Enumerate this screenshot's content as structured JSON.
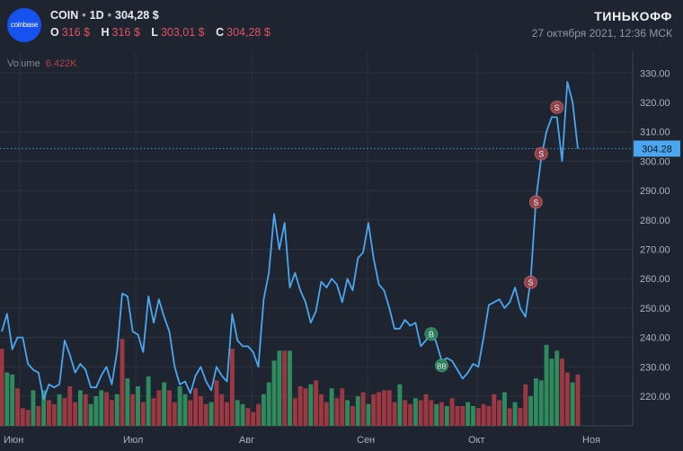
{
  "header": {
    "logo_text": "coinbase",
    "symbol": "COIN",
    "interval": "1D",
    "price": "304,28 $",
    "ohlc": [
      {
        "key": "O",
        "value": "316 $"
      },
      {
        "key": "H",
        "value": "316 $"
      },
      {
        "key": "L",
        "value": "303,01 $"
      },
      {
        "key": "C",
        "value": "304,28 $"
      }
    ],
    "brand": "ТИНЬКОФФ",
    "timestamp": "27 октября 2021, 12:36 МСК"
  },
  "volume": {
    "label": "Volume",
    "value": "6.422K"
  },
  "colors": {
    "background": "#1e2530",
    "line": "#4ba6f0",
    "volume_up": "#2f8a5e",
    "volume_down": "#9b3842",
    "marker_sell": "#a8484e",
    "marker_buy": "#2e8a60",
    "price_badge": "#4ba6f0",
    "grid": "#2b3440"
  },
  "chart_data": {
    "type": "line",
    "x_labels": [
      "Июн",
      "Июл",
      "Авг",
      "Сен",
      "Окт",
      "Ноя"
    ],
    "y_ticks": [
      220,
      230,
      240,
      250,
      260,
      270,
      280,
      290,
      300,
      310,
      320,
      330
    ],
    "y_tick_labels": [
      "220.00",
      "230.00",
      "240.00",
      "250.00",
      "260.00",
      "270.00",
      "280.00",
      "290.00",
      "300.00",
      "310.00",
      "320.00",
      "330.00"
    ],
    "ylim": [
      208,
      338
    ],
    "grid": true,
    "last_price": 304.28,
    "last_price_label": "304.28",
    "series": [
      {
        "values": [
          242,
          248,
          236,
          240,
          240,
          231,
          229,
          228,
          219,
          224,
          223,
          224,
          239,
          234,
          228,
          231,
          229,
          223,
          223,
          227,
          230,
          224,
          235,
          255,
          254,
          242,
          241,
          235,
          254,
          245,
          253,
          247,
          242,
          230,
          224,
          225,
          221,
          227,
          230,
          225,
          222,
          230,
          227,
          225,
          248,
          239,
          237,
          237,
          235,
          230,
          253,
          262,
          282,
          270,
          279,
          257,
          262,
          256,
          252,
          245,
          249,
          259,
          257,
          260,
          258,
          252,
          260,
          256,
          267,
          269,
          279,
          267,
          258,
          256,
          250,
          243,
          243,
          246,
          244,
          245,
          237,
          239,
          243,
          238,
          232,
          233,
          232,
          229,
          226,
          228,
          231,
          230,
          240,
          251,
          252,
          253,
          250,
          252,
          257,
          250,
          247,
          260,
          287,
          301,
          310,
          315,
          315,
          300,
          327,
          320,
          304.28
        ]
      }
    ],
    "volume": {
      "up": [
        false,
        true,
        true,
        false,
        false,
        false,
        true,
        false,
        true,
        false,
        false,
        true,
        false,
        false,
        false,
        true,
        false,
        true,
        true,
        true,
        false,
        false,
        true,
        false,
        true,
        false,
        true,
        false,
        true,
        false,
        false,
        true,
        false,
        false,
        true,
        true,
        false,
        false,
        false,
        false,
        true,
        false,
        false,
        false,
        false,
        true,
        true,
        false,
        false,
        false,
        true,
        true,
        true,
        true,
        false,
        true,
        false,
        false,
        false,
        true,
        false,
        false,
        false,
        true,
        false,
        false,
        true,
        false,
        true,
        false,
        true,
        false,
        false,
        false,
        false,
        false,
        true,
        false,
        false,
        true,
        false,
        false,
        false,
        true,
        false,
        true,
        false,
        false,
        false,
        true,
        true,
        false,
        false,
        false,
        false,
        false,
        true,
        false,
        true,
        false,
        false,
        true,
        true,
        true,
        true,
        true,
        true,
        false,
        false,
        true,
        false
      ],
      "heights": [
        3.9,
        2.7,
        2.6,
        1.9,
        0.9,
        0.8,
        1.8,
        1.0,
        1.8,
        1.3,
        1.1,
        1.6,
        1.4,
        2.0,
        1.2,
        1.8,
        1.6,
        1.1,
        1.5,
        1.8,
        1.7,
        1.3,
        1.6,
        4.4,
        2.4,
        1.6,
        2.0,
        1.2,
        2.5,
        1.4,
        1.8,
        2.2,
        1.8,
        1.2,
        2.0,
        1.6,
        1.3,
        1.9,
        1.5,
        1.1,
        1.2,
        2.3,
        1.6,
        1.2,
        3.9,
        1.3,
        1.1,
        0.9,
        0.7,
        1.1,
        1.6,
        2.2,
        3.3,
        3.8,
        3.8,
        3.8,
        1.4,
        2.0,
        1.9,
        2.1,
        2.3,
        1.6,
        1.2,
        1.9,
        1.4,
        1.9,
        1.3,
        1.0,
        1.5,
        1.7,
        1.1,
        1.6,
        1.7,
        1.8,
        1.8,
        1.2,
        2.1,
        1.3,
        1.1,
        1.4,
        1.3,
        1.6,
        1.3,
        1.1,
        1.2,
        1.0,
        1.4,
        1.0,
        1.0,
        1.2,
        1.0,
        0.9,
        1.1,
        1.0,
        1.6,
        1.3,
        1.7,
        0.9,
        1.2,
        0.9,
        2.1,
        1.5,
        2.4,
        2.3,
        4.1,
        3.4,
        3.8,
        3.4,
        2.7,
        2.2,
        2.6
      ]
    },
    "markers": [
      {
        "label": "S",
        "kind": "sell",
        "index": 106
      },
      {
        "label": "S",
        "kind": "sell",
        "index": 103
      },
      {
        "label": "S",
        "kind": "sell",
        "index": 102
      },
      {
        "label": "S",
        "kind": "sell",
        "index": 101
      },
      {
        "label": "B",
        "kind": "buy",
        "index": 82
      },
      {
        "label": "BB",
        "kind": "buy",
        "index": 84
      }
    ]
  }
}
